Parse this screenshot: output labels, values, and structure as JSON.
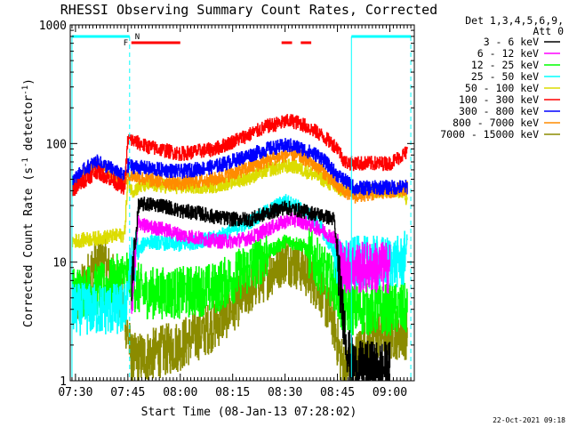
{
  "chart_data": {
    "type": "line",
    "title": "RHESSI Observing Summary Count Rates, Corrected",
    "xlabel": "Start Time (08-Jan-13 07:28:02)",
    "ylabel": "Corrected Count Rate (s⁻¹ detector⁻¹)",
    "ylabel_main": "Corrected Count Rate (s",
    "ylabel_sup1": "-1",
    "ylabel_mid": " detector",
    "ylabel_sup2": "-1",
    "ylabel_end": ")",
    "y_scale": "log",
    "ylim": [
      1,
      1000
    ],
    "xlim_minutes": [
      -1.5,
      97
    ],
    "x_ticks": [
      {
        "label": "07:30",
        "minutes": 0
      },
      {
        "label": "07:45",
        "minutes": 15
      },
      {
        "label": "08:00",
        "minutes": 30
      },
      {
        "label": "08:15",
        "minutes": 45
      },
      {
        "label": "08:30",
        "minutes": 60
      },
      {
        "label": "08:45",
        "minutes": 75
      },
      {
        "label": "09:00",
        "minutes": 90
      }
    ],
    "y_ticks": [
      {
        "label": "1",
        "value": 1
      },
      {
        "label": "10",
        "value": 10
      },
      {
        "label": "100",
        "value": 100
      },
      {
        "label": "1000",
        "value": 1000
      }
    ],
    "legend_header": [
      "Det 1,3,4,5,6,9,",
      "Att 0"
    ],
    "legend_position": "right",
    "timestamp": "22-Oct-2021 09:18",
    "flags": {
      "night_label": "N",
      "flare_label": "F",
      "night_color": "#00ffff",
      "flare_color": "#ff0000",
      "night_intervals_minutes": [
        [
          -1.0,
          15.5
        ],
        [
          79.0,
          96.0
        ]
      ],
      "flare_intervals_minutes": [
        [
          16.0,
          30.0
        ],
        [
          59.0,
          62.0
        ],
        [
          64.5,
          67.5
        ]
      ]
    },
    "series": [
      {
        "name": "3 - 6 keV",
        "color": "#000000",
        "x": [
          16,
          18,
          20,
          25,
          30,
          35,
          40,
          45,
          50,
          55,
          60,
          62,
          65,
          70,
          74,
          76,
          78,
          80,
          90
        ],
        "values": [
          6,
          30,
          31,
          30,
          27,
          26,
          24,
          23,
          23,
          26,
          29,
          28,
          27,
          25,
          23,
          5,
          1.7,
          1.3,
          1.3
        ]
      },
      {
        "name": "6 - 12 keV",
        "color": "#ff00ff",
        "x": [
          16,
          18,
          20,
          25,
          30,
          35,
          40,
          45,
          50,
          55,
          60,
          62,
          65,
          70,
          74,
          76,
          78,
          80,
          90
        ],
        "values": [
          5,
          22,
          20,
          19,
          17,
          16,
          15,
          15,
          16,
          19,
          22,
          23,
          22,
          19,
          16,
          9,
          9,
          9,
          9
        ]
      },
      {
        "name": "12 - 25 keV",
        "color": "#00ff00",
        "x": [
          -1,
          8,
          15,
          16,
          20,
          30,
          40,
          50,
          55,
          60,
          65,
          70,
          75,
          76,
          80,
          95
        ],
        "values": [
          5.5,
          6,
          8,
          6.5,
          5.5,
          5.5,
          6,
          9,
          12,
          15,
          14,
          9,
          6,
          4,
          4,
          4
        ]
      },
      {
        "name": "25 - 50 keV",
        "color": "#00ffff",
        "x": [
          -1,
          5,
          14,
          16,
          20,
          30,
          40,
          50,
          55,
          60,
          65,
          70,
          74,
          76,
          80,
          94,
          95
        ],
        "values": [
          4,
          4,
          4,
          10,
          15,
          14,
          16,
          22,
          27,
          33,
          28,
          20,
          12,
          9,
          10,
          10,
          16
        ]
      },
      {
        "name": "50 - 100 keV",
        "color": "#dcdc00",
        "x": [
          -1,
          7,
          14,
          15,
          16,
          20,
          30,
          40,
          50,
          55,
          60,
          62,
          65,
          70,
          75,
          80,
          94,
          95
        ],
        "values": [
          15,
          16,
          17,
          50,
          40,
          45,
          43,
          44,
          52,
          60,
          64,
          65,
          60,
          52,
          41,
          40,
          40,
          32
        ]
      },
      {
        "name": "100 - 300 keV",
        "color": "#ff0000",
        "x": [
          -1,
          3,
          6,
          10,
          14,
          15,
          20,
          30,
          40,
          50,
          55,
          60,
          62,
          65,
          70,
          75,
          77,
          79,
          80,
          90,
          95
        ],
        "values": [
          40,
          50,
          58,
          50,
          42,
          110,
          95,
          82,
          90,
          120,
          140,
          152,
          155,
          145,
          120,
          92,
          70,
          68,
          68,
          68,
          85
        ]
      },
      {
        "name": "300 - 800 keV",
        "color": "#0000ff",
        "x": [
          -1,
          3,
          6,
          10,
          14,
          15,
          20,
          30,
          40,
          50,
          55,
          60,
          62,
          65,
          70,
          75,
          80,
          95
        ],
        "values": [
          48,
          62,
          70,
          62,
          52,
          65,
          62,
          58,
          64,
          80,
          90,
          96,
          96,
          90,
          78,
          54,
          42,
          43
        ]
      },
      {
        "name": "800 - 7000 keV",
        "color": "#ff8c00",
        "x": [
          -1,
          3,
          6,
          10,
          14,
          15,
          20,
          30,
          40,
          50,
          55,
          60,
          62,
          65,
          70,
          75,
          80,
          95
        ],
        "values": [
          44,
          58,
          68,
          56,
          46,
          55,
          50,
          46,
          50,
          63,
          72,
          80,
          82,
          76,
          62,
          43,
          36,
          42
        ]
      },
      {
        "name": "7000 - 15000 keV",
        "color": "#8b8b00",
        "x": [
          -1,
          2,
          5,
          8,
          10,
          13,
          15,
          16,
          20,
          30,
          40,
          50,
          55,
          60,
          65,
          70,
          74,
          76,
          78,
          80,
          85,
          95
        ],
        "values": [
          4,
          6,
          9,
          10,
          8,
          5,
          2.5,
          1.5,
          1.6,
          2,
          3,
          6,
          8,
          11,
          9,
          6,
          3,
          1.5,
          1.2,
          1.5,
          2.5,
          2.5
        ]
      }
    ]
  }
}
